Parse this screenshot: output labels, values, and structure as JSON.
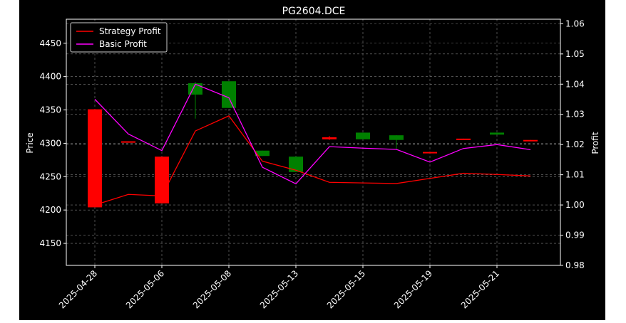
{
  "chart_data": {
    "type": "candlestick",
    "title": "PG2604.DCE",
    "xlabel": "",
    "ylabel": "Price",
    "y2label": "Profit",
    "ylim": [
      4117,
      4486
    ],
    "y2lim": [
      0.98,
      1.0615
    ],
    "yticks": [
      4150,
      4200,
      4250,
      4300,
      4350,
      4400,
      4450
    ],
    "y2ticks": [
      0.98,
      0.99,
      1.0,
      1.01,
      1.02,
      1.03,
      1.04,
      1.05,
      1.06
    ],
    "y2tick_labels": [
      "0.98",
      "0.99",
      "1.00",
      "1.01",
      "1.02",
      "1.03",
      "1.04",
      "1.05",
      "1.06"
    ],
    "x_tick_labels": [
      "2025-04-28",
      "2025-05-06",
      "2025-05-08",
      "2025-05-13",
      "2025-05-15",
      "2025-05-19",
      "2025-05-21"
    ],
    "x_tick_index": [
      0,
      2,
      4,
      6,
      8,
      10,
      12
    ],
    "grid": true,
    "legend_position": "top-left",
    "colors": {
      "background": "#000000",
      "up": "#008000",
      "down": "#ff0000",
      "strategy": "#ff0000",
      "basic": "#ff00ff",
      "text": "#ffffff",
      "grid": "#7f7f7f"
    },
    "candles": [
      {
        "open": 4351,
        "close": 4204,
        "high": 4351,
        "low": 4204
      },
      {
        "open": 4303,
        "close": 4302,
        "high": 4303,
        "low": 4302
      },
      {
        "open": 4280,
        "close": 4210,
        "high": 4280,
        "low": 4210
      },
      {
        "open": 4373,
        "close": 4390,
        "high": 4392,
        "low": 4337
      },
      {
        "open": 4353,
        "close": 4393,
        "high": 4393,
        "low": 4353
      },
      {
        "open": 4281,
        "close": 4289,
        "high": 4289,
        "low": 4281
      },
      {
        "open": 4257,
        "close": 4280,
        "high": 4280,
        "low": 4257
      },
      {
        "open": 4309,
        "close": 4306,
        "high": 4311,
        "low": 4305
      },
      {
        "open": 4306,
        "close": 4316,
        "high": 4316,
        "low": 4306
      },
      {
        "open": 4305,
        "close": 4312,
        "high": 4312,
        "low": 4292
      },
      {
        "open": 4287,
        "close": 4286,
        "high": 4287,
        "low": 4286
      },
      {
        "open": 4307,
        "close": 4306,
        "high": 4307,
        "low": 4306
      },
      {
        "open": 4313,
        "close": 4316,
        "high": 4316,
        "low": 4313
      },
      {
        "open": 4305,
        "close": 4304,
        "high": 4305,
        "low": 4304
      }
    ],
    "series": [
      {
        "name": "Strategy Profit",
        "values": [
          1.0,
          1.0035,
          1.003,
          1.0245,
          1.0295,
          1.0145,
          1.0115,
          1.0075,
          1.0073,
          1.0071,
          1.0088,
          1.0105,
          1.0101,
          1.0096
        ]
      },
      {
        "name": "Basic Profit",
        "values": [
          1.035,
          1.0235,
          1.018,
          1.04,
          1.0355,
          1.0125,
          1.007,
          1.0193,
          1.0188,
          1.0184,
          1.0142,
          1.0187,
          1.02,
          1.0183
        ]
      }
    ]
  }
}
